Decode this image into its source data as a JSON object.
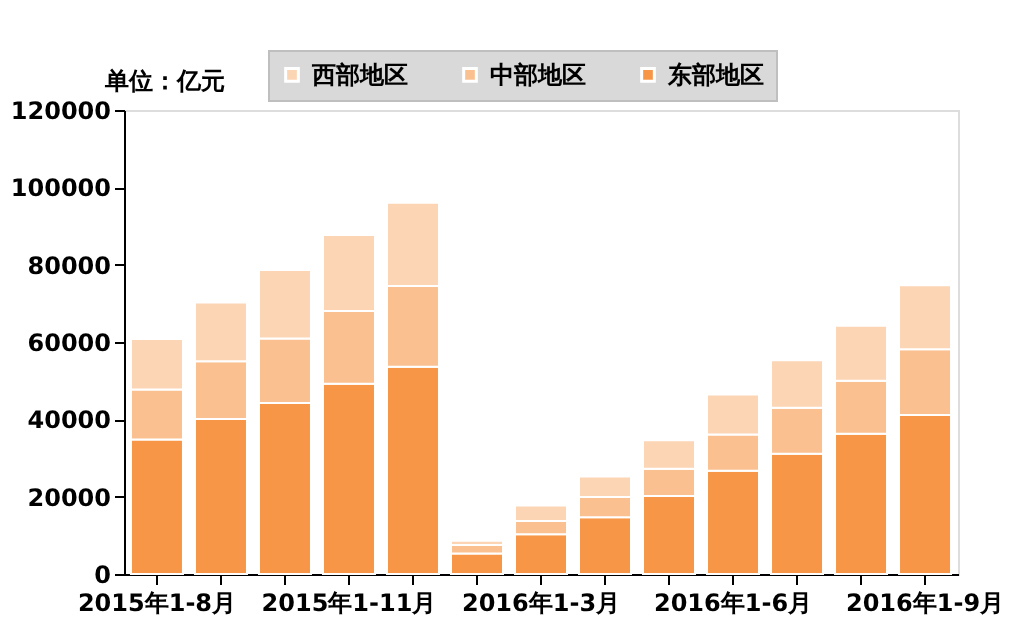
{
  "chart_data": {
    "type": "bar",
    "stacked": true,
    "ylabel": "单位：亿元",
    "categories": [
      "2015年1-8月",
      null,
      null,
      "2015年1-11月",
      null,
      null,
      "2016年1-3月",
      null,
      null,
      "2016年1-6月",
      null,
      null,
      "2016年1-9月"
    ],
    "series": [
      {
        "name": "东部地区",
        "color": "#f79646",
        "values": [
          34800,
          40100,
          44200,
          49200,
          53600,
          5300,
          10300,
          14700,
          20200,
          26700,
          31100,
          36300,
          41100
        ]
      },
      {
        "name": "中部地区",
        "color": "#fac090",
        "values": [
          12900,
          14900,
          16700,
          18800,
          20900,
          2200,
          3400,
          5200,
          7000,
          9400,
          11900,
          13700,
          17000
        ]
      },
      {
        "name": "西部地区",
        "color": "#fcd5b4",
        "values": [
          13100,
          15200,
          17700,
          19700,
          21500,
          1100,
          4000,
          5300,
          7400,
          10300,
          12300,
          14200,
          16600
        ]
      }
    ],
    "ylim": [
      0,
      120000
    ],
    "yticks": [
      0,
      20000,
      40000,
      60000,
      80000,
      100000,
      120000
    ],
    "grid": false,
    "legend": "top"
  }
}
